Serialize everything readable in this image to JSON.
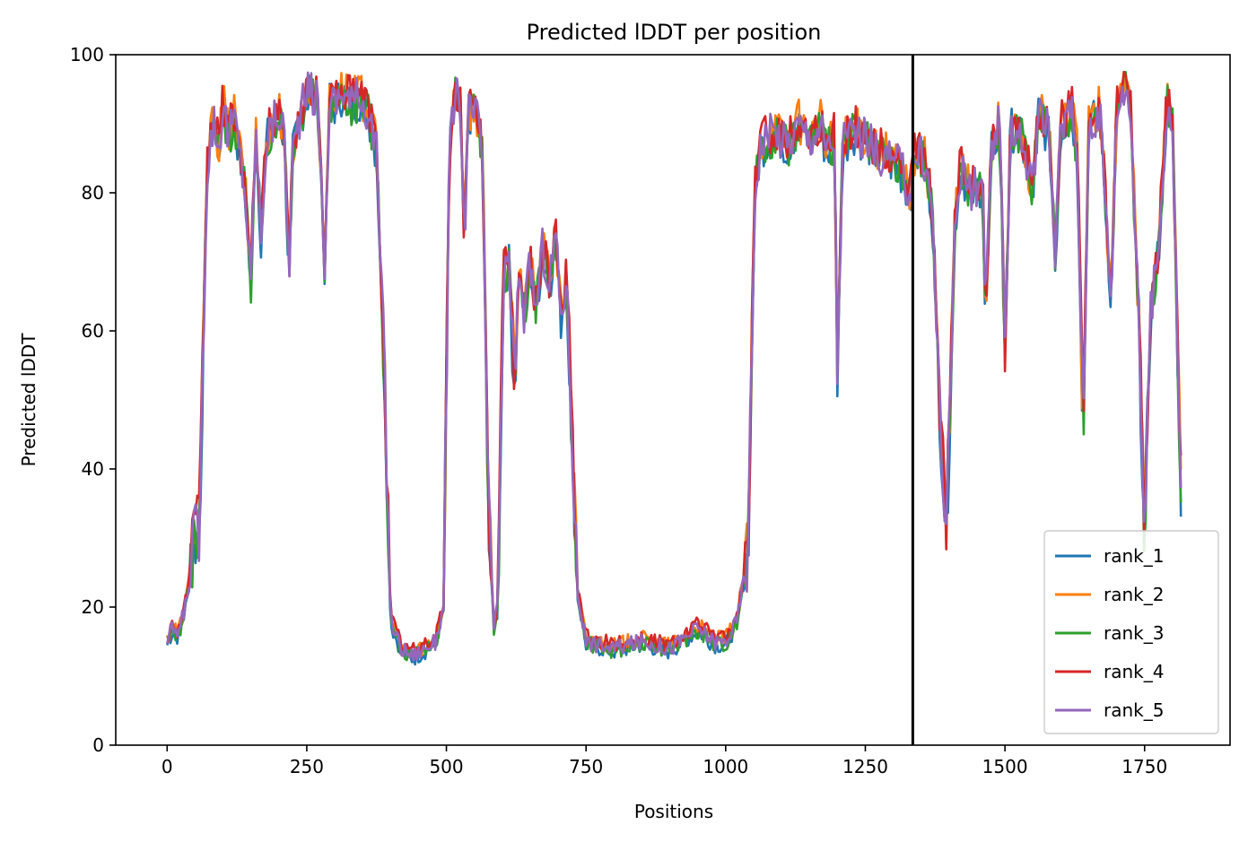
{
  "chart_data": {
    "type": "line",
    "title": "Predicted lDDT per position",
    "xlabel": "Positions",
    "ylabel": "Predicted lDDT",
    "xlim": [
      -92,
      1903
    ],
    "ylim": [
      0,
      100
    ],
    "xticks": [
      0,
      250,
      500,
      750,
      1000,
      1250,
      1500,
      1750
    ],
    "yticks": [
      0,
      20,
      40,
      60,
      80,
      100
    ],
    "legend_position": "lower-right",
    "vline_x": 1335,
    "grid": false,
    "base_profile": [
      [
        0,
        15
      ],
      [
        10,
        17
      ],
      [
        20,
        16
      ],
      [
        35,
        21
      ],
      [
        48,
        30
      ],
      [
        58,
        31
      ],
      [
        65,
        60
      ],
      [
        72,
        84
      ],
      [
        78,
        88
      ],
      [
        85,
        91
      ],
      [
        92,
        86
      ],
      [
        100,
        93
      ],
      [
        110,
        88
      ],
      [
        120,
        91
      ],
      [
        130,
        86
      ],
      [
        140,
        80
      ],
      [
        150,
        66
      ],
      [
        158,
        90
      ],
      [
        168,
        74
      ],
      [
        178,
        88
      ],
      [
        190,
        90
      ],
      [
        200,
        92
      ],
      [
        210,
        88
      ],
      [
        218,
        68
      ],
      [
        225,
        86
      ],
      [
        240,
        92
      ],
      [
        255,
        95
      ],
      [
        270,
        93
      ],
      [
        283,
        68
      ],
      [
        290,
        94
      ],
      [
        300,
        93
      ],
      [
        315,
        95
      ],
      [
        330,
        93
      ],
      [
        345,
        94
      ],
      [
        360,
        92
      ],
      [
        375,
        86
      ],
      [
        390,
        52
      ],
      [
        400,
        18
      ],
      [
        420,
        14
      ],
      [
        440,
        13
      ],
      [
        460,
        14
      ],
      [
        480,
        15
      ],
      [
        495,
        20
      ],
      [
        505,
        85
      ],
      [
        515,
        94
      ],
      [
        525,
        93
      ],
      [
        532,
        73
      ],
      [
        540,
        92
      ],
      [
        555,
        91
      ],
      [
        565,
        85
      ],
      [
        575,
        35
      ],
      [
        585,
        17
      ],
      [
        592,
        20
      ],
      [
        602,
        68
      ],
      [
        612,
        70
      ],
      [
        622,
        52
      ],
      [
        630,
        70
      ],
      [
        640,
        62
      ],
      [
        650,
        70
      ],
      [
        660,
        63
      ],
      [
        672,
        72
      ],
      [
        685,
        67
      ],
      [
        695,
        75
      ],
      [
        705,
        62
      ],
      [
        715,
        68
      ],
      [
        725,
        45
      ],
      [
        735,
        22
      ],
      [
        750,
        15
      ],
      [
        800,
        14
      ],
      [
        850,
        15
      ],
      [
        900,
        14
      ],
      [
        950,
        17
      ],
      [
        980,
        15
      ],
      [
        1000,
        15
      ],
      [
        1020,
        18
      ],
      [
        1040,
        28
      ],
      [
        1052,
        80
      ],
      [
        1062,
        87
      ],
      [
        1075,
        88
      ],
      [
        1090,
        89
      ],
      [
        1110,
        87
      ],
      [
        1130,
        90
      ],
      [
        1150,
        88
      ],
      [
        1170,
        90
      ],
      [
        1180,
        86
      ],
      [
        1195,
        88
      ],
      [
        1200,
        55
      ],
      [
        1210,
        88
      ],
      [
        1230,
        89
      ],
      [
        1250,
        88
      ],
      [
        1270,
        86
      ],
      [
        1290,
        85
      ],
      [
        1310,
        84
      ],
      [
        1330,
        80
      ],
      [
        1340,
        86
      ],
      [
        1355,
        85
      ],
      [
        1370,
        78
      ],
      [
        1380,
        55
      ],
      [
        1395,
        30
      ],
      [
        1410,
        75
      ],
      [
        1420,
        84
      ],
      [
        1440,
        80
      ],
      [
        1460,
        82
      ],
      [
        1465,
        60
      ],
      [
        1475,
        86
      ],
      [
        1490,
        90
      ],
      [
        1500,
        58
      ],
      [
        1510,
        90
      ],
      [
        1530,
        88
      ],
      [
        1550,
        80
      ],
      [
        1560,
        92
      ],
      [
        1580,
        88
      ],
      [
        1590,
        70
      ],
      [
        1600,
        90
      ],
      [
        1620,
        92
      ],
      [
        1630,
        85
      ],
      [
        1640,
        45
      ],
      [
        1650,
        90
      ],
      [
        1670,
        92
      ],
      [
        1690,
        65
      ],
      [
        1700,
        92
      ],
      [
        1715,
        96
      ],
      [
        1725,
        92
      ],
      [
        1740,
        60
      ],
      [
        1750,
        30
      ],
      [
        1760,
        62
      ],
      [
        1775,
        72
      ],
      [
        1790,
        93
      ],
      [
        1800,
        90
      ],
      [
        1815,
        37
      ]
    ],
    "series": [
      {
        "name": "rank_1",
        "color": "#1f77b4",
        "offset": -0.5
      },
      {
        "name": "rank_2",
        "color": "#ff7f0e",
        "offset": 0.4
      },
      {
        "name": "rank_3",
        "color": "#2ca02c",
        "offset": -0.3
      },
      {
        "name": "rank_4",
        "color": "#d62728",
        "offset": 0.6
      },
      {
        "name": "rank_5",
        "color": "#9467bd",
        "offset": 0.0
      }
    ]
  }
}
